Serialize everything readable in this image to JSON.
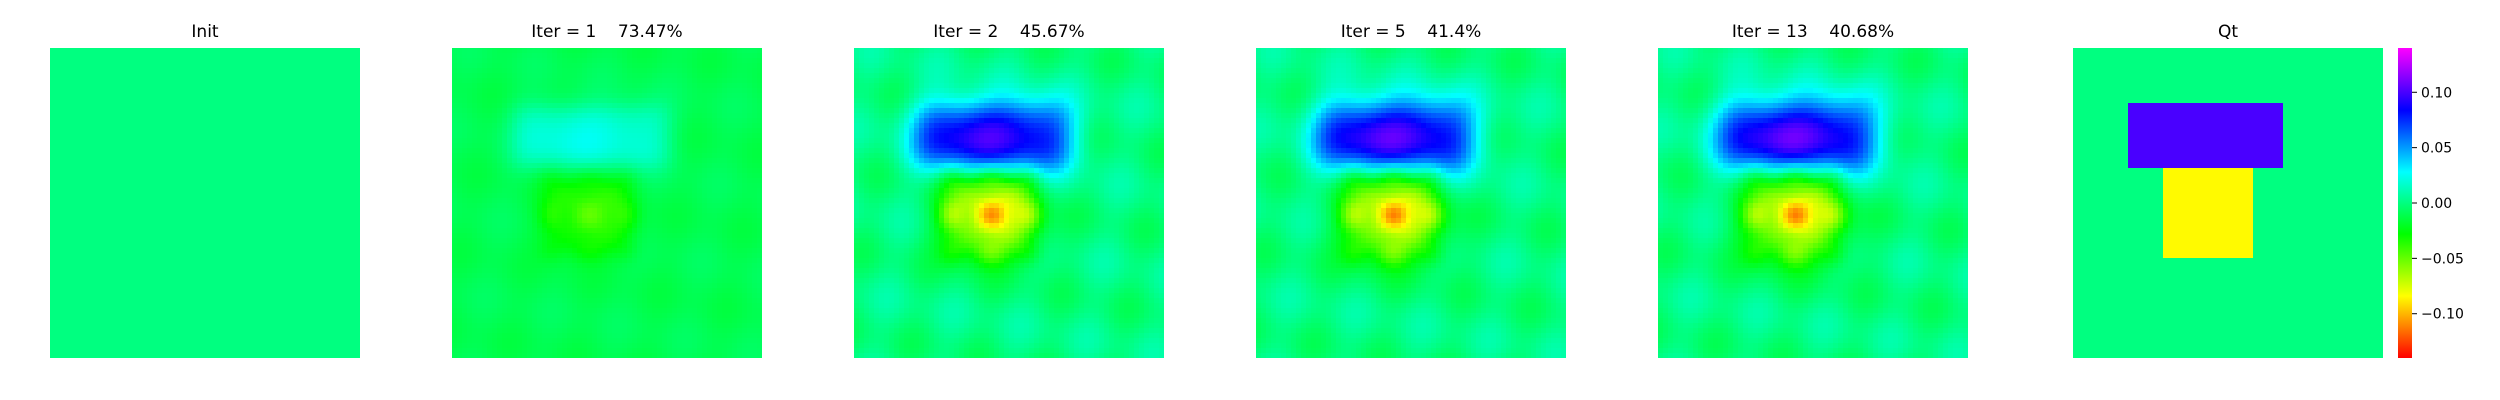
{
  "chart_data": {
    "type": "heatmap",
    "colormap": "gist_rainbow_r",
    "vmin": -0.14,
    "vmax": 0.14,
    "grid": false,
    "axes_visible": false,
    "panels": [
      {
        "id": "init",
        "title": "Init",
        "kind": "flat",
        "background": 0.0
      },
      {
        "id": "iter1",
        "title": "Iter = 1    73.47%",
        "kind": "estimate",
        "background": -0.01,
        "upper_block": 0.035,
        "lower_block": -0.04,
        "ripple": 0.002,
        "blur": 0.75
      },
      {
        "id": "iter2",
        "title": "Iter = 2    45.67%",
        "kind": "estimate",
        "background": 0.0,
        "upper_block": 0.11,
        "lower_block": -0.118,
        "ripple": 0.005,
        "blur": 0.55
      },
      {
        "id": "iter5",
        "title": "Iter = 5    41.4%",
        "kind": "estimate",
        "background": 0.0,
        "upper_block": 0.12,
        "lower_block": -0.125,
        "ripple": 0.005,
        "blur": 0.5
      },
      {
        "id": "iter13",
        "title": "Iter = 13    40.68%",
        "kind": "estimate",
        "background": 0.0,
        "upper_block": 0.125,
        "lower_block": -0.128,
        "ripple": 0.005,
        "blur": 0.48
      },
      {
        "id": "qt",
        "title": "Qt",
        "kind": "truth",
        "background": 0.0,
        "upper_block": 0.1,
        "lower_block": -0.085
      }
    ],
    "colorbar": {
      "ticks": [
        0.1,
        0.05,
        0.0,
        -0.05,
        -0.1
      ],
      "tick_labels": [
        "0.10",
        "0.05",
        "0.00",
        "−0.05",
        "−0.10"
      ]
    }
  }
}
